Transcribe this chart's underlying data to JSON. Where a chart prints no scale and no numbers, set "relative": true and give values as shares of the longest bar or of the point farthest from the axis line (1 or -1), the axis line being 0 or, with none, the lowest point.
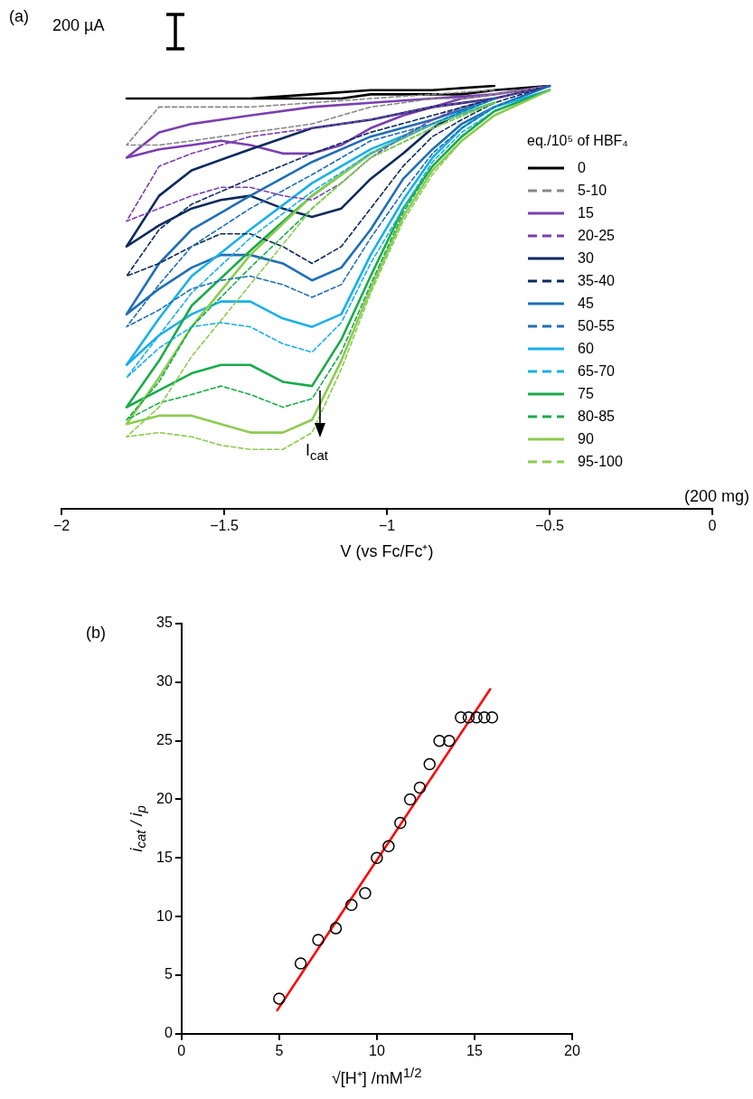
{
  "chart_data": [
    {
      "type": "line",
      "relative": true,
      "xlabel": "V (vs Fc/Fc⁺)",
      "legend": "right",
      "legend_title": "eq./10⁵ of HBF₄",
      "marker": "none",
      "xlim": [
        -2,
        0
      ],
      "xticks": [
        -2,
        -1.5,
        -1,
        -0.5,
        0
      ],
      "x": [
        -0.5,
        -0.67,
        -0.77,
        -0.86,
        -0.95,
        -1.05,
        -1.14,
        -1.23,
        -1.32,
        -1.42,
        -1.51,
        -1.6,
        -1.7,
        -1.8,
        -1.7,
        -1.6,
        -1.42,
        -1.23,
        -1.05,
        -0.86,
        -0.67
      ],
      "annotations": [
        "(a)",
        "200 µA",
        "I$_{cat}$",
        "(200 mg)"
      ],
      "series": [
        {
          "name": "0",
          "color": "#000000",
          "line_style": "solid",
          "values": [
            1.0,
            0.99,
            0.98,
            0.98,
            0.98,
            0.98,
            0.97,
            0.97,
            0.97,
            0.97,
            0.97,
            0.97,
            0.97,
            0.97,
            0.97,
            0.97,
            0.97,
            0.98,
            0.99,
            0.99,
            1.0
          ]
        },
        {
          "name": "5-10",
          "color": "#888888",
          "line_style": "dashed",
          "values": [
            1.0,
            0.98,
            0.97,
            0.97,
            0.96,
            0.95,
            0.93,
            0.91,
            0.9,
            0.89,
            0.88,
            0.87,
            0.86,
            0.86,
            0.95,
            0.95,
            0.95,
            0.96,
            0.97,
            0.98,
            0.99
          ]
        },
        {
          "name": "15",
          "color": "#7b3fb0",
          "line_style": "solid",
          "values": [
            1.0,
            0.98,
            0.97,
            0.95,
            0.93,
            0.9,
            0.86,
            0.84,
            0.84,
            0.86,
            0.87,
            0.86,
            0.85,
            0.83,
            0.89,
            0.91,
            0.93,
            0.95,
            0.96,
            0.97,
            0.98
          ]
        },
        {
          "name": "20-25",
          "color": "#7b3fb0",
          "line_style": "dashed",
          "values": [
            1.0,
            0.97,
            0.95,
            0.92,
            0.88,
            0.83,
            0.77,
            0.73,
            0.74,
            0.76,
            0.76,
            0.74,
            0.71,
            0.68,
            0.81,
            0.84,
            0.88,
            0.9,
            0.92,
            0.95,
            0.97
          ]
        },
        {
          "name": "30",
          "color": "#0d2a5e",
          "line_style": "solid",
          "values": [
            1.0,
            0.97,
            0.94,
            0.9,
            0.84,
            0.78,
            0.71,
            0.69,
            0.71,
            0.74,
            0.73,
            0.71,
            0.67,
            0.62,
            0.74,
            0.8,
            0.85,
            0.9,
            0.92,
            0.95,
            0.97
          ]
        },
        {
          "name": "35-40",
          "color": "#0d2a5e",
          "line_style": "dashed",
          "values": [
            1.0,
            0.96,
            0.92,
            0.88,
            0.81,
            0.71,
            0.62,
            0.58,
            0.62,
            0.65,
            0.65,
            0.62,
            0.58,
            0.55,
            0.66,
            0.72,
            0.78,
            0.84,
            0.89,
            0.93,
            0.97
          ]
        },
        {
          "name": "45",
          "color": "#1f6fb5",
          "line_style": "solid",
          "values": [
            1.0,
            0.95,
            0.91,
            0.85,
            0.78,
            0.66,
            0.57,
            0.54,
            0.58,
            0.6,
            0.6,
            0.57,
            0.52,
            0.46,
            0.58,
            0.66,
            0.74,
            0.82,
            0.88,
            0.92,
            0.97
          ]
        },
        {
          "name": "50-55",
          "color": "#1f6fb5",
          "line_style": "dashed",
          "values": [
            1.0,
            0.95,
            0.9,
            0.84,
            0.75,
            0.64,
            0.53,
            0.5,
            0.53,
            0.55,
            0.54,
            0.52,
            0.47,
            0.43,
            0.53,
            0.62,
            0.71,
            0.79,
            0.87,
            0.91,
            0.97
          ]
        },
        {
          "name": "60",
          "color": "#1ab0e8",
          "line_style": "solid",
          "values": [
            0.99,
            0.95,
            0.9,
            0.83,
            0.73,
            0.6,
            0.46,
            0.43,
            0.45,
            0.49,
            0.49,
            0.46,
            0.41,
            0.34,
            0.45,
            0.55,
            0.66,
            0.77,
            0.85,
            0.91,
            0.97
          ]
        },
        {
          "name": "65-70",
          "color": "#1ab0e8",
          "line_style": "dashed",
          "values": [
            0.99,
            0.94,
            0.89,
            0.82,
            0.71,
            0.58,
            0.44,
            0.37,
            0.39,
            0.43,
            0.44,
            0.43,
            0.38,
            0.31,
            0.41,
            0.51,
            0.64,
            0.75,
            0.84,
            0.91,
            0.96
          ]
        },
        {
          "name": "75",
          "color": "#1aab4a",
          "line_style": "solid",
          "values": [
            0.99,
            0.94,
            0.88,
            0.81,
            0.71,
            0.55,
            0.4,
            0.29,
            0.3,
            0.34,
            0.34,
            0.32,
            0.28,
            0.24,
            0.35,
            0.48,
            0.61,
            0.74,
            0.84,
            0.91,
            0.96
          ]
        },
        {
          "name": "80-85",
          "color": "#1aab4a",
          "line_style": "dashed",
          "values": [
            0.99,
            0.94,
            0.88,
            0.81,
            0.7,
            0.53,
            0.37,
            0.26,
            0.24,
            0.27,
            0.29,
            0.27,
            0.25,
            0.21,
            0.3,
            0.43,
            0.57,
            0.71,
            0.83,
            0.9,
            0.96
          ]
        },
        {
          "name": "90",
          "color": "#8ccc50",
          "line_style": "solid",
          "values": [
            0.99,
            0.93,
            0.87,
            0.8,
            0.69,
            0.52,
            0.35,
            0.21,
            0.18,
            0.18,
            0.2,
            0.22,
            0.22,
            0.2,
            0.31,
            0.43,
            0.6,
            0.74,
            0.84,
            0.91,
            0.96
          ]
        },
        {
          "name": "95-100",
          "color": "#8ccc50",
          "line_style": "dashed",
          "values": [
            0.99,
            0.93,
            0.87,
            0.79,
            0.68,
            0.51,
            0.33,
            0.18,
            0.14,
            0.14,
            0.15,
            0.17,
            0.18,
            0.17,
            0.24,
            0.36,
            0.53,
            0.71,
            0.83,
            0.9,
            0.96
          ]
        }
      ]
    },
    {
      "type": "scatter",
      "xlabel": "√[H⁺] /mM$^{1/2}$",
      "ylabel": "i$_{cat}$ / i$_{p}$",
      "xlim": [
        0,
        20
      ],
      "xticks": [
        0,
        5,
        10,
        15,
        20
      ],
      "ylim": [
        0,
        35
      ],
      "yticks": [
        0,
        5,
        10,
        15,
        20,
        25,
        30,
        35
      ],
      "annotations": [
        "(b)"
      ],
      "series": [
        {
          "color": "#000000",
          "marker": "circle",
          "x": [
            5,
            6.1,
            7,
            7.9,
            8.7,
            9.4,
            10,
            10.6,
            11.2,
            11.7,
            12.2,
            12.7,
            13.2,
            13.7,
            14.3,
            14.7,
            15.1,
            15.5,
            15.9
          ],
          "values": [
            3,
            6,
            8,
            9,
            11,
            12,
            15,
            16,
            18,
            20,
            21,
            23,
            25,
            25,
            27,
            27,
            27,
            27,
            27
          ]
        },
        {
          "type": "line",
          "color": "#ff0000",
          "marker": "none",
          "line_style": "solid",
          "x": [
            4.9,
            15.8
          ],
          "values": [
            2,
            29.4
          ]
        }
      ]
    }
  ]
}
